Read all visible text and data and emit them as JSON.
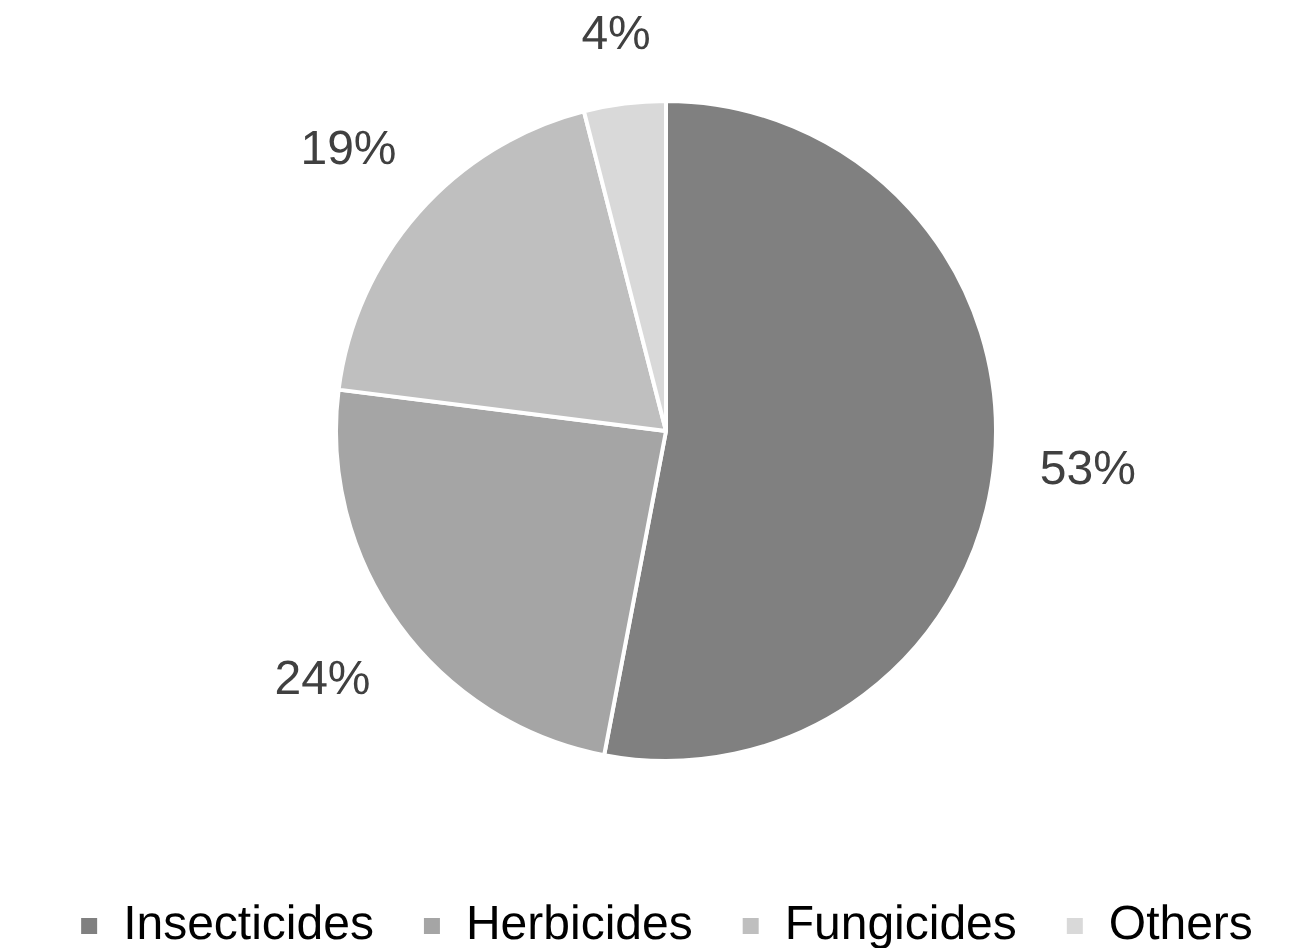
{
  "chart_data": {
    "type": "pie",
    "categories": [
      "Insecticides",
      "Herbicides",
      "Fungicides",
      "Others"
    ],
    "values": [
      53,
      24,
      19,
      4
    ],
    "colors": [
      "#808080",
      "#a5a5a5",
      "#bfbfbf",
      "#d9d9d9"
    ],
    "value_labels": [
      "53%",
      "24%",
      "19%",
      "4%"
    ],
    "legend": "bottom"
  }
}
